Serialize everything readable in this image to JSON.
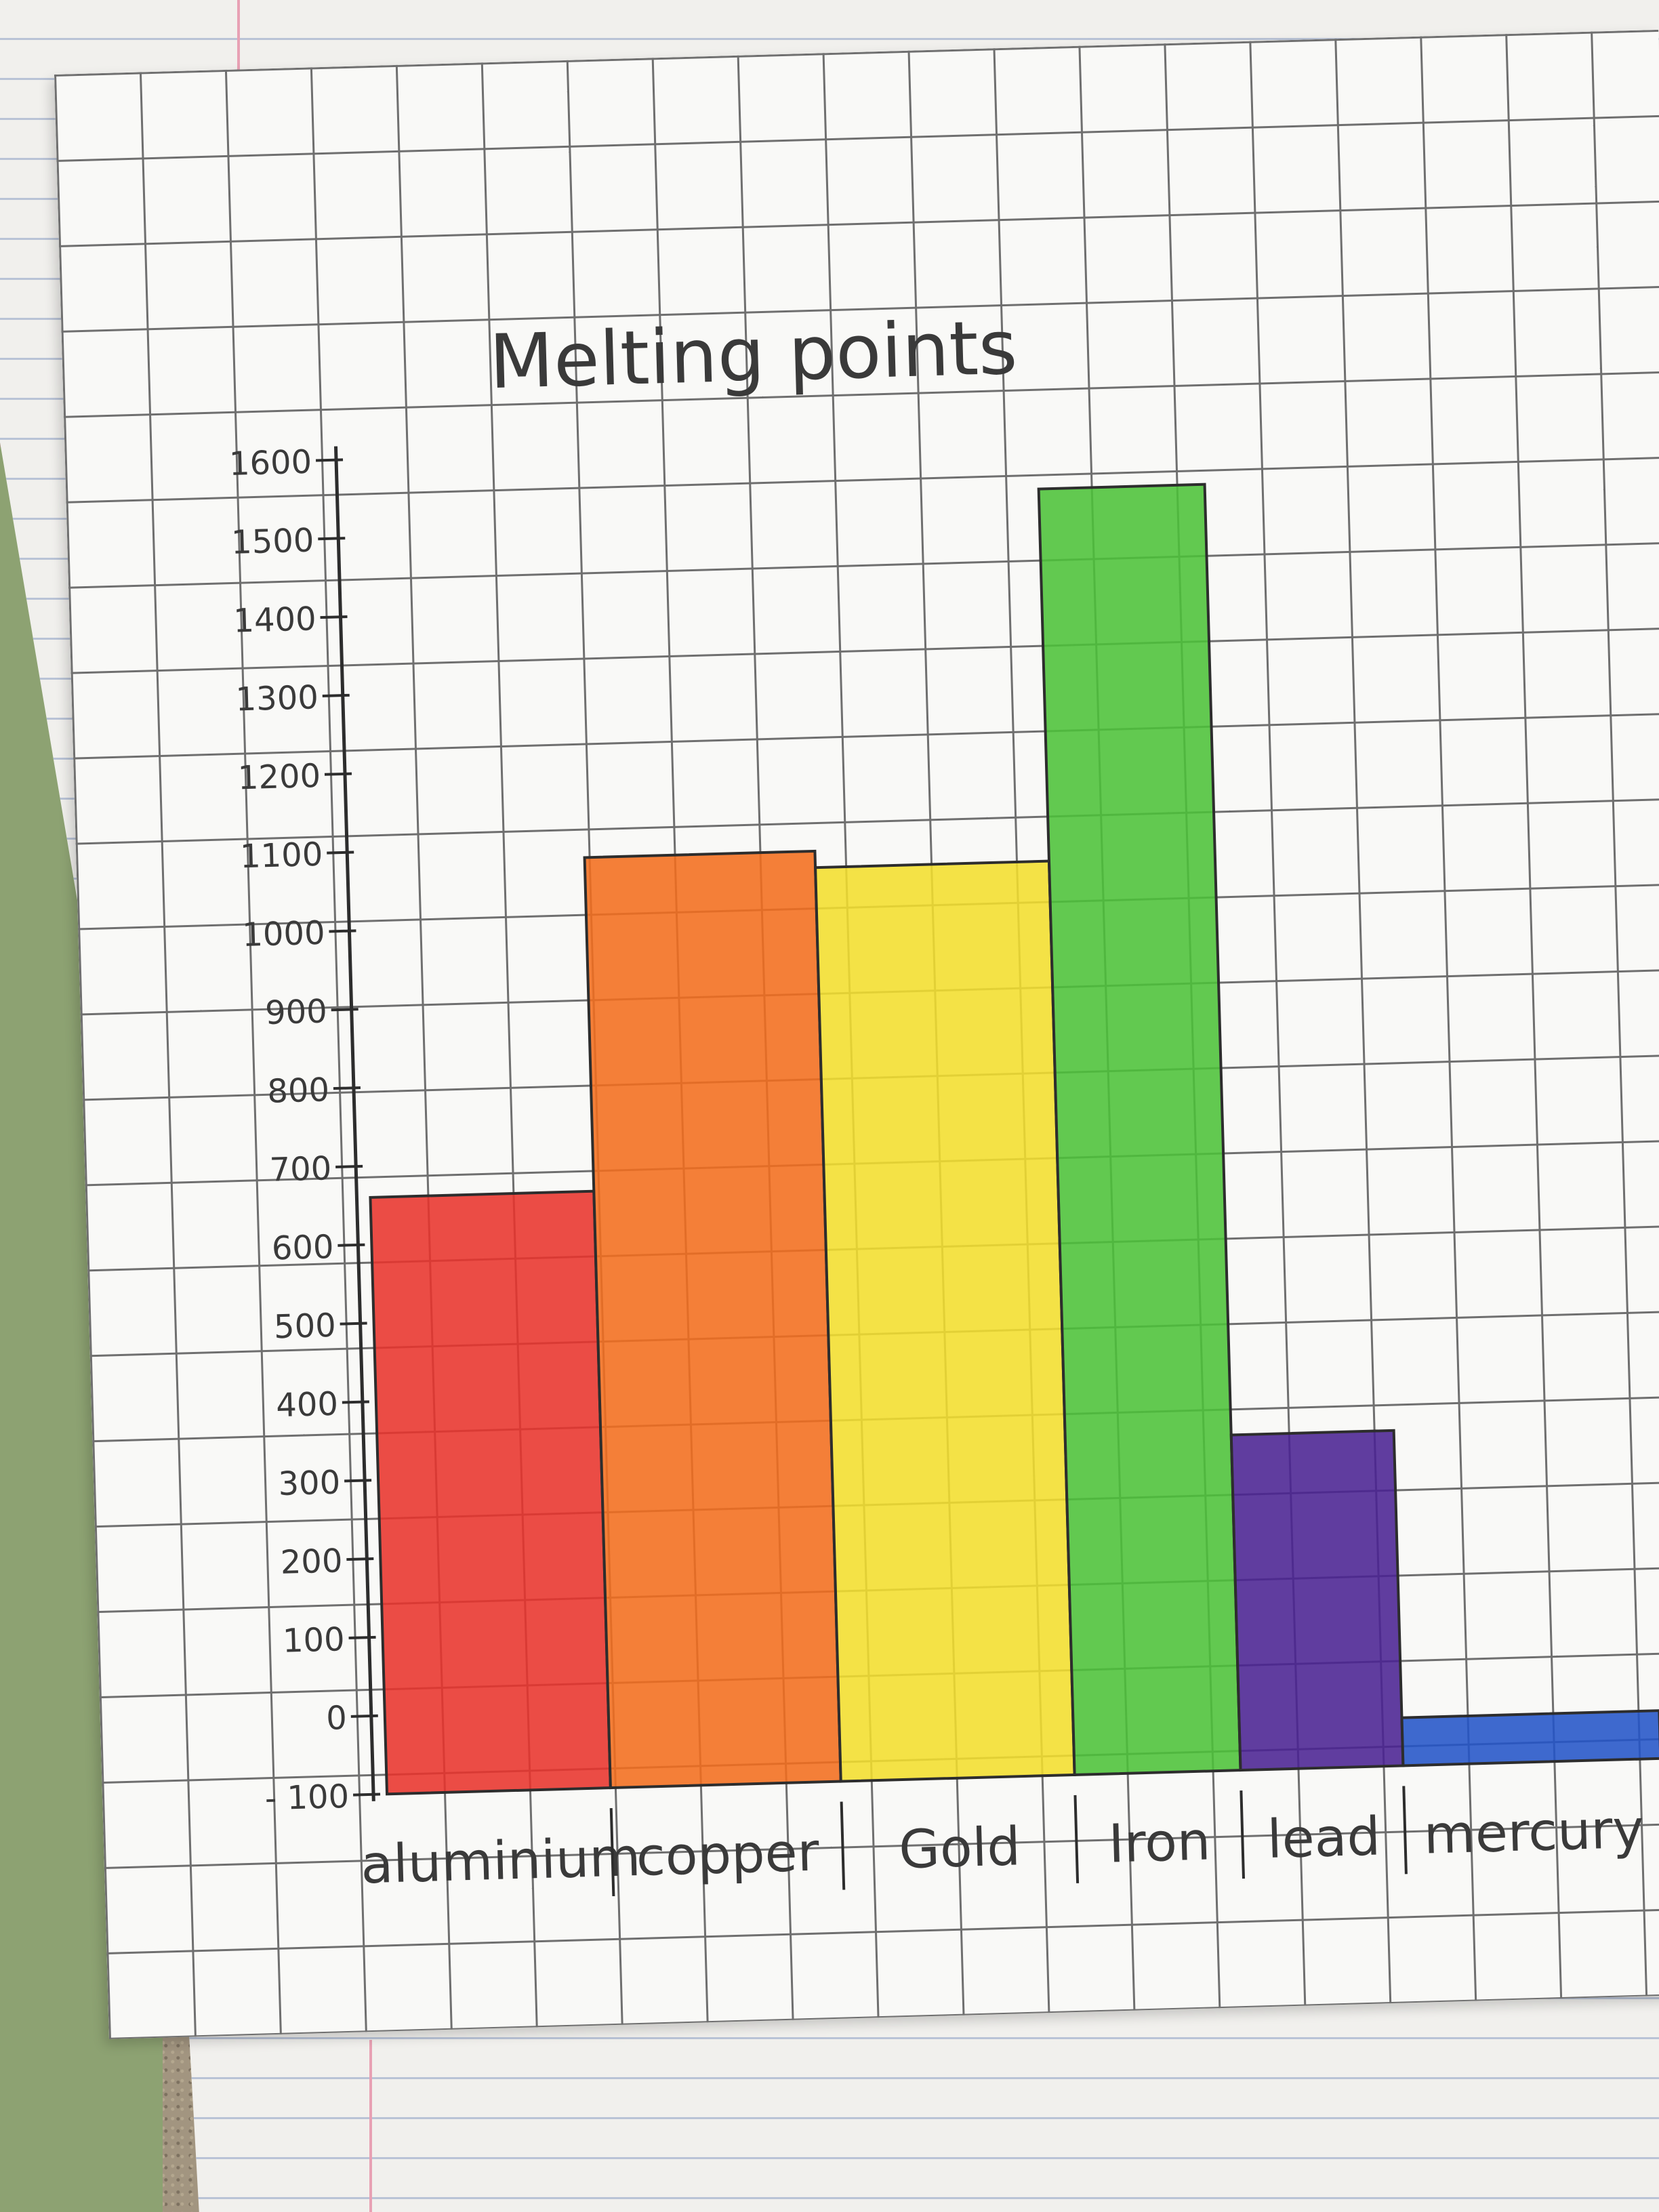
{
  "chart_data": {
    "type": "bar",
    "title": "Melting points",
    "categories": [
      "aluminium",
      "copper",
      "Gold",
      "Iron",
      "lead",
      "mercury"
    ],
    "values": [
      660,
      1085,
      1064,
      1538,
      327,
      -39
    ],
    "colors": [
      "#e8332c",
      "#f26d1e",
      "#f2de2e",
      "#4cc239",
      "#4a2293",
      "#2354c8"
    ],
    "ylim": [
      -100,
      1600
    ],
    "y_ticks": [
      "1600",
      "1500",
      "1400",
      "1300",
      "1200",
      "1100",
      "1000",
      "900",
      "800",
      "700",
      "600",
      "500",
      "400",
      "300",
      "200",
      "100",
      "0",
      "- 100"
    ],
    "y_tick_values": [
      1600,
      1500,
      1400,
      1300,
      1200,
      1100,
      1000,
      900,
      800,
      700,
      600,
      500,
      400,
      300,
      200,
      100,
      0,
      -100
    ],
    "grid": true,
    "xlabel": "",
    "ylabel": ""
  }
}
